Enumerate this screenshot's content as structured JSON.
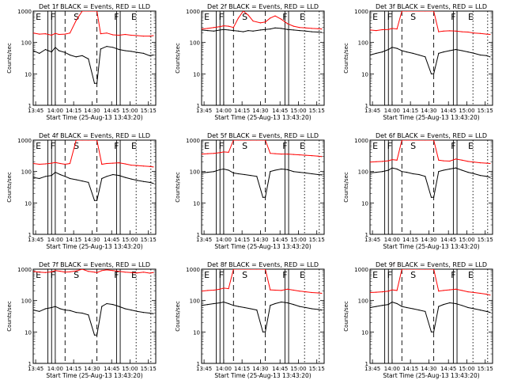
{
  "figure": {
    "xlabel": "Start Time (25-Aug-13 13:43:20)",
    "ylabel": "Counts/sec",
    "x_tick_labels": [
      "13:45",
      "14:00",
      "14:15",
      "14:30",
      "14:45",
      "15:00",
      "15:15"
    ],
    "y_tick_labels": [
      "1",
      "10",
      "100",
      "1000"
    ],
    "segment_labels": [
      "E",
      "F",
      "S",
      "F",
      "E"
    ],
    "legend_colors": {
      "events": "#000000",
      "lld": "#ff0000"
    }
  },
  "chart_data": [
    {
      "type": "line",
      "title": "Det 1f BLACK = Events, RED = LLD",
      "yscale": "log",
      "ylim": [
        1,
        1000
      ],
      "xlim_minutes": [
        0,
        100
      ],
      "series": [
        {
          "color": "#ff0000",
          "x": [
            0,
            5,
            10,
            15,
            18,
            21,
            26,
            30,
            35,
            40,
            45,
            50,
            52,
            55,
            60,
            65,
            70,
            75,
            80,
            85,
            90,
            95,
            98
          ],
          "y": [
            200,
            185,
            190,
            170,
            195,
            180,
            185,
            200,
            500,
            1000,
            1000,
            1000,
            1000,
            190,
            200,
            175,
            170,
            180,
            170,
            165,
            160,
            160,
            165
          ]
        },
        {
          "color": "#000000",
          "x": [
            0,
            5,
            10,
            15,
            18,
            21,
            26,
            30,
            35,
            40,
            45,
            50,
            52,
            55,
            60,
            65,
            70,
            75,
            80,
            85,
            90,
            95,
            98
          ],
          "y": [
            55,
            45,
            60,
            50,
            70,
            55,
            48,
            40,
            35,
            38,
            30,
            5,
            5,
            62,
            75,
            70,
            60,
            55,
            52,
            48,
            45,
            38,
            40
          ]
        }
      ]
    },
    {
      "type": "line",
      "title": "Det 2f BLACK = Events, RED = LLD",
      "yscale": "log",
      "ylim": [
        1,
        1000
      ],
      "xlim_minutes": [
        0,
        100
      ],
      "series": [
        {
          "color": "#ff0000",
          "x": [
            0,
            5,
            10,
            15,
            18,
            22,
            26,
            30,
            34,
            38,
            42,
            48,
            52,
            56,
            60,
            65,
            70,
            75,
            80,
            85,
            90,
            95,
            98
          ],
          "y": [
            270,
            280,
            300,
            320,
            340,
            330,
            300,
            600,
            1000,
            750,
            480,
            420,
            450,
            600,
            700,
            550,
            400,
            330,
            300,
            290,
            280,
            275,
            270
          ]
        },
        {
          "color": "#000000",
          "x": [
            0,
            5,
            10,
            15,
            18,
            22,
            26,
            30,
            34,
            38,
            42,
            48,
            52,
            56,
            60,
            65,
            70,
            75,
            80,
            85,
            90,
            95,
            98
          ],
          "y": [
            250,
            240,
            230,
            250,
            260,
            250,
            240,
            230,
            220,
            240,
            230,
            250,
            260,
            270,
            290,
            280,
            260,
            250,
            240,
            230,
            220,
            215,
            210
          ]
        }
      ]
    },
    {
      "type": "line",
      "title": "Det 3f BLACK = Events, RED = LLD",
      "yscale": "log",
      "ylim": [
        1,
        1000
      ],
      "xlim_minutes": [
        0,
        100
      ],
      "series": [
        {
          "color": "#ff0000",
          "x": [
            0,
            5,
            10,
            15,
            18,
            22,
            26,
            30,
            35,
            40,
            45,
            50,
            52,
            56,
            60,
            65,
            70,
            75,
            80,
            85,
            90,
            95,
            98
          ],
          "y": [
            250,
            240,
            255,
            260,
            280,
            270,
            1000,
            1000,
            1000,
            1000,
            1000,
            1000,
            1000,
            220,
            230,
            235,
            230,
            220,
            215,
            200,
            195,
            185,
            180
          ]
        },
        {
          "color": "#000000",
          "x": [
            0,
            5,
            10,
            15,
            18,
            22,
            26,
            30,
            35,
            40,
            45,
            50,
            52,
            56,
            60,
            65,
            70,
            75,
            80,
            85,
            90,
            95,
            98
          ],
          "y": [
            40,
            45,
            50,
            60,
            70,
            65,
            55,
            50,
            45,
            40,
            35,
            10,
            10,
            45,
            50,
            55,
            60,
            55,
            50,
            45,
            40,
            38,
            35
          ]
        }
      ]
    },
    {
      "type": "line",
      "title": "Det 4f BLACK = Events, RED = LLD",
      "yscale": "log",
      "ylim": [
        1,
        1000
      ],
      "xlim_minutes": [
        0,
        100
      ],
      "series": [
        {
          "color": "#ff0000",
          "x": [
            0,
            5,
            10,
            15,
            18,
            22,
            26,
            30,
            35,
            40,
            45,
            50,
            52,
            56,
            60,
            65,
            70,
            75,
            80,
            85,
            90,
            95,
            98
          ],
          "y": [
            180,
            170,
            175,
            185,
            195,
            180,
            170,
            180,
            1000,
            1000,
            1000,
            1000,
            1000,
            170,
            180,
            185,
            190,
            175,
            160,
            155,
            150,
            145,
            140
          ]
        },
        {
          "color": "#000000",
          "x": [
            0,
            5,
            10,
            15,
            18,
            22,
            26,
            30,
            35,
            40,
            45,
            50,
            52,
            56,
            60,
            65,
            70,
            75,
            80,
            85,
            90,
            95,
            98
          ],
          "y": [
            65,
            60,
            70,
            75,
            95,
            80,
            70,
            60,
            55,
            50,
            45,
            12,
            12,
            60,
            70,
            80,
            75,
            65,
            58,
            52,
            48,
            45,
            42
          ]
        }
      ]
    },
    {
      "type": "line",
      "title": "Det 5f BLACK = Events, RED = LLD",
      "yscale": "log",
      "ylim": [
        1,
        1000
      ],
      "xlim_minutes": [
        0,
        100
      ],
      "series": [
        {
          "color": "#ff0000",
          "x": [
            0,
            5,
            10,
            15,
            18,
            22,
            26,
            30,
            35,
            40,
            45,
            50,
            52,
            56,
            60,
            65,
            70,
            75,
            80,
            85,
            90,
            95,
            98
          ],
          "y": [
            360,
            370,
            380,
            400,
            420,
            410,
            1000,
            1000,
            1000,
            1000,
            1000,
            1000,
            1000,
            380,
            370,
            360,
            360,
            350,
            340,
            330,
            320,
            310,
            300
          ]
        },
        {
          "color": "#000000",
          "x": [
            0,
            5,
            10,
            15,
            18,
            22,
            26,
            30,
            35,
            40,
            45,
            50,
            52,
            56,
            60,
            65,
            70,
            75,
            80,
            85,
            90,
            95,
            98
          ],
          "y": [
            90,
            95,
            100,
            115,
            120,
            110,
            90,
            85,
            80,
            75,
            70,
            15,
            15,
            100,
            110,
            120,
            115,
            100,
            95,
            90,
            85,
            80,
            78
          ]
        }
      ]
    },
    {
      "type": "line",
      "title": "Det 6f BLACK = Events, RED = LLD",
      "yscale": "log",
      "ylim": [
        1,
        1000
      ],
      "xlim_minutes": [
        0,
        100
      ],
      "series": [
        {
          "color": "#ff0000",
          "x": [
            0,
            5,
            10,
            15,
            18,
            22,
            26,
            30,
            35,
            40,
            45,
            50,
            52,
            56,
            60,
            65,
            70,
            75,
            80,
            85,
            90,
            95,
            98
          ],
          "y": [
            200,
            205,
            210,
            220,
            240,
            230,
            1000,
            1000,
            1000,
            1000,
            1000,
            1000,
            1000,
            230,
            220,
            215,
            250,
            230,
            210,
            200,
            190,
            185,
            180
          ]
        },
        {
          "color": "#000000",
          "x": [
            0,
            5,
            10,
            15,
            18,
            22,
            26,
            30,
            35,
            40,
            45,
            50,
            52,
            56,
            60,
            65,
            70,
            75,
            80,
            85,
            90,
            95,
            98
          ],
          "y": [
            90,
            95,
            100,
            110,
            130,
            120,
            100,
            95,
            85,
            80,
            70,
            15,
            15,
            100,
            110,
            120,
            130,
            110,
            95,
            85,
            75,
            70,
            65
          ]
        }
      ]
    },
    {
      "type": "line",
      "title": "Det 7f BLACK = Events, RED = LLD",
      "yscale": "log",
      "ylim": [
        1,
        1000
      ],
      "xlim_minutes": [
        0,
        100
      ],
      "series": [
        {
          "color": "#ff0000",
          "x": [
            0,
            5,
            10,
            15,
            18,
            22,
            26,
            30,
            35,
            40,
            45,
            50,
            52,
            56,
            60,
            65,
            70,
            75,
            80,
            85,
            90,
            95,
            98
          ],
          "y": [
            850,
            800,
            780,
            820,
            900,
            860,
            800,
            820,
            880,
            1000,
            850,
            800,
            780,
            900,
            950,
            900,
            850,
            800,
            780,
            760,
            800,
            750,
            780
          ]
        },
        {
          "color": "#000000",
          "x": [
            0,
            5,
            10,
            15,
            18,
            22,
            26,
            30,
            35,
            40,
            45,
            50,
            52,
            56,
            60,
            65,
            70,
            75,
            80,
            85,
            90,
            95,
            98
          ],
          "y": [
            50,
            45,
            55,
            60,
            65,
            55,
            50,
            48,
            42,
            40,
            35,
            8,
            8,
            65,
            80,
            75,
            65,
            55,
            50,
            45,
            42,
            40,
            38
          ]
        }
      ]
    },
    {
      "type": "line",
      "title": "Det 8f BLACK = Events, RED = LLD",
      "yscale": "log",
      "ylim": [
        1,
        1000
      ],
      "xlim_minutes": [
        0,
        100
      ],
      "series": [
        {
          "color": "#ff0000",
          "x": [
            0,
            5,
            10,
            15,
            18,
            22,
            26,
            30,
            35,
            40,
            45,
            50,
            52,
            56,
            60,
            65,
            70,
            75,
            80,
            85,
            90,
            95,
            98
          ],
          "y": [
            200,
            210,
            215,
            230,
            250,
            240,
            1000,
            1000,
            1000,
            1000,
            1000,
            1000,
            1000,
            220,
            215,
            210,
            230,
            215,
            200,
            190,
            180,
            175,
            170
          ]
        },
        {
          "color": "#000000",
          "x": [
            0,
            5,
            10,
            15,
            18,
            22,
            26,
            30,
            35,
            40,
            45,
            50,
            52,
            56,
            60,
            65,
            70,
            75,
            80,
            85,
            90,
            95,
            98
          ],
          "y": [
            70,
            75,
            80,
            85,
            90,
            80,
            70,
            65,
            60,
            55,
            50,
            10,
            10,
            70,
            80,
            90,
            85,
            75,
            65,
            60,
            55,
            52,
            50
          ]
        }
      ]
    },
    {
      "type": "line",
      "title": "Det 9f BLACK = Events, RED = LLD",
      "yscale": "log",
      "ylim": [
        1,
        1000
      ],
      "xlim_minutes": [
        0,
        100
      ],
      "series": [
        {
          "color": "#ff0000",
          "x": [
            0,
            5,
            10,
            15,
            18,
            22,
            26,
            30,
            35,
            40,
            45,
            50,
            52,
            56,
            60,
            65,
            70,
            75,
            80,
            85,
            90,
            95,
            98
          ],
          "y": [
            180,
            185,
            190,
            200,
            220,
            210,
            1000,
            1000,
            1000,
            1000,
            1000,
            1000,
            1000,
            200,
            210,
            220,
            230,
            210,
            190,
            180,
            170,
            160,
            150
          ]
        },
        {
          "color": "#000000",
          "x": [
            0,
            5,
            10,
            15,
            18,
            22,
            26,
            30,
            35,
            40,
            45,
            50,
            52,
            56,
            60,
            65,
            70,
            75,
            80,
            85,
            90,
            95,
            98
          ],
          "y": [
            60,
            65,
            70,
            75,
            90,
            80,
            65,
            60,
            55,
            50,
            45,
            10,
            10,
            65,
            75,
            85,
            80,
            70,
            60,
            55,
            50,
            45,
            42
          ]
        }
      ]
    }
  ]
}
